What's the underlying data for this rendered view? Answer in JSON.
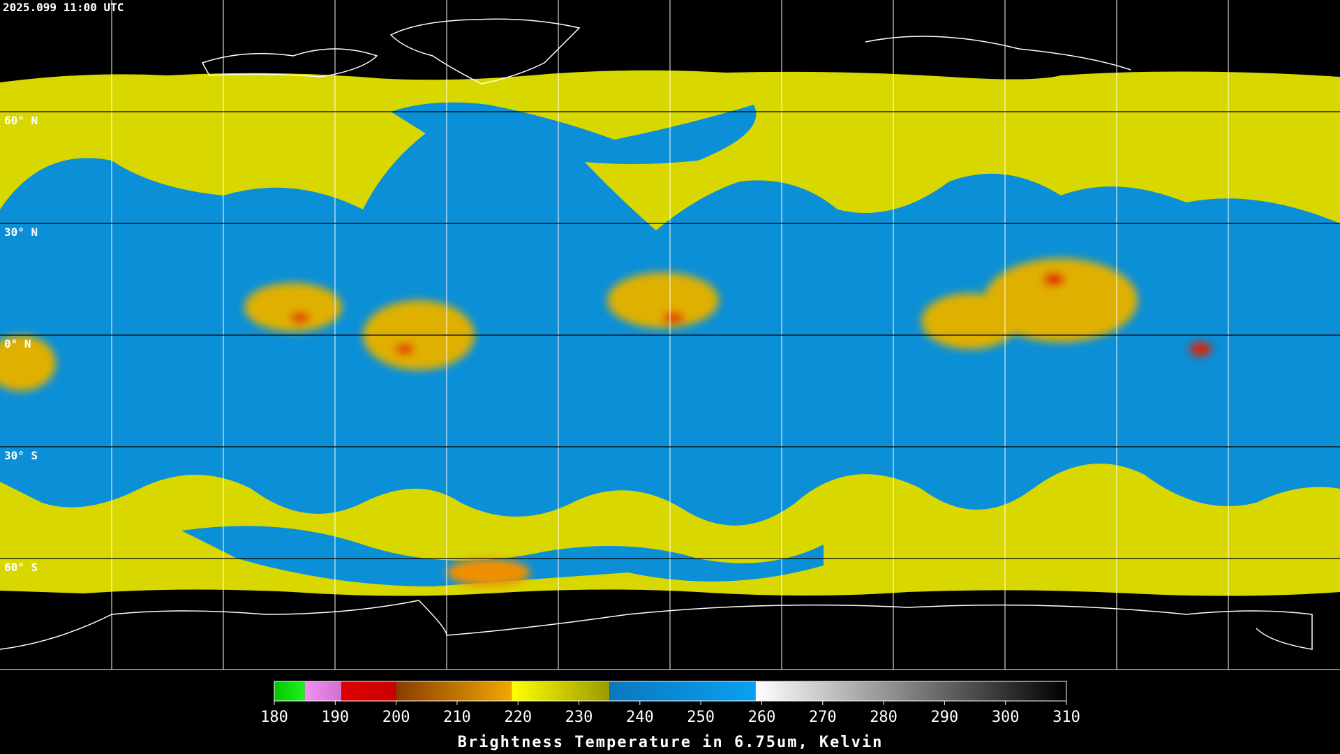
{
  "header": {
    "timestamp": "2025.099 11:00 UTC"
  },
  "map": {
    "latitude_labels": [
      "60° N",
      "30° N",
      "0° N",
      "30° S",
      "60° S"
    ]
  },
  "colorbar": {
    "title": "Brightness Temperature in 6.75um, Kelvin",
    "range": [
      180,
      310
    ],
    "ticks": [
      180,
      190,
      200,
      210,
      220,
      230,
      240,
      250,
      260,
      270,
      280,
      290,
      300,
      310
    ],
    "segments": [
      {
        "from": 180,
        "to": 185,
        "colors": [
          "#00c800",
          "#20f020"
        ]
      },
      {
        "from": 185,
        "to": 191,
        "colors": [
          "#f090f0",
          "#d070d0"
        ]
      },
      {
        "from": 191,
        "to": 200,
        "colors": [
          "#e00000",
          "#c80000"
        ]
      },
      {
        "from": 200,
        "to": 219,
        "colors": [
          "#8a3c00",
          "#f0a800"
        ]
      },
      {
        "from": 219,
        "to": 235,
        "colors": [
          "#ffff00",
          "#9a9a00"
        ]
      },
      {
        "from": 235,
        "to": 259,
        "colors": [
          "#0a78c0",
          "#0aa0f0"
        ]
      },
      {
        "from": 259,
        "to": 310,
        "colors": [
          "#ffffff",
          "#000000"
        ]
      }
    ]
  }
}
